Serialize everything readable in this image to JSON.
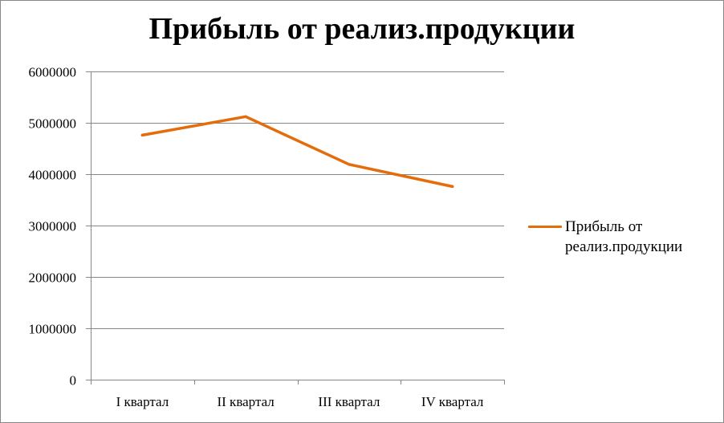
{
  "chart_data": {
    "type": "line",
    "title": "Прибыль от реализ.продукции",
    "categories": [
      "I квартал",
      "II квартал",
      "III квартал",
      "IV квартал"
    ],
    "series": [
      {
        "name": "Прибыль от реализ.продукции",
        "values": [
          4760000,
          5120000,
          4190000,
          3760000
        ],
        "color": "#e46c0a"
      }
    ],
    "ylim": [
      0,
      6000000
    ],
    "yticks": [
      "0",
      "1000000",
      "2000000",
      "3000000",
      "4000000",
      "5000000",
      "6000000"
    ],
    "grid": true,
    "legend_position": "right"
  }
}
